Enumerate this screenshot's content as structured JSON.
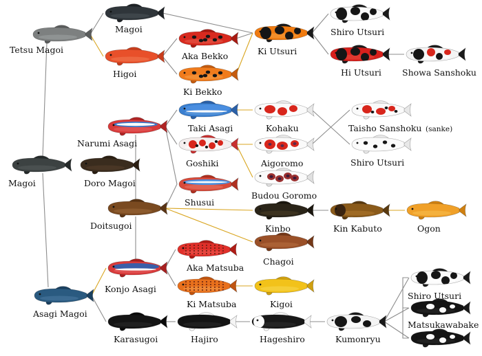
{
  "nodes": [
    {
      "id": "tetsu_magoi",
      "label": "Tetsu Magoi",
      "body": "#7d8080",
      "belly": "#9ea2a2",
      "fin": "#5a5c5c",
      "pattern": "plain"
    },
    {
      "id": "magoi_top",
      "label": "Magoi",
      "body": "#2f353a",
      "belly": "#4a5258",
      "fin": "#1e2226",
      "pattern": "plain"
    },
    {
      "id": "higoi",
      "label": "Higoi",
      "body": "#e8502a",
      "belly": "#f07a52",
      "fin": "#c93d1c",
      "pattern": "plain"
    },
    {
      "id": "aka_bekko",
      "label": "Aka Bekko",
      "body": "#d82a1f",
      "belly": "#e85d4d",
      "fin": "#a81a12",
      "pattern": "spots-black"
    },
    {
      "id": "ki_bekko",
      "label": "Ki Bekko",
      "body": "#f07b1c",
      "belly": "#f8a048",
      "fin": "#c55c10",
      "pattern": "spots-black"
    },
    {
      "id": "ki_utsuri",
      "label": "Ki Utsuri",
      "body": "#f07b10",
      "belly": "#f8a040",
      "fin": "#1a1a1a",
      "pattern": "utsuri-black"
    },
    {
      "id": "shiro_utsuri_top",
      "label": "Shiro Utsuri",
      "body": "#fafafa",
      "belly": "#ffffff",
      "fin": "#1a1a1a",
      "pattern": "utsuri-black"
    },
    {
      "id": "hi_utsuri",
      "label": "Hi Utsuri",
      "body": "#d8201c",
      "belly": "#e84c40",
      "fin": "#1a1a1a",
      "pattern": "utsuri-black"
    },
    {
      "id": "showa_sanshoku",
      "label": "Showa Sanshoku",
      "body": "#f4f4f4",
      "belly": "#ffffff",
      "fin": "#1a1a1a",
      "pattern": "showa"
    },
    {
      "id": "magoi_left",
      "label": "Magoi",
      "body": "#3c4242",
      "belly": "#555c5c",
      "fin": "#252a2a",
      "pattern": "plain"
    },
    {
      "id": "narumi_asagi",
      "label": "Narumi Asagi",
      "body": "#d83a3a",
      "belly": "#e86060",
      "fin": "#b02424",
      "pattern": "asagi-net"
    },
    {
      "id": "doro_magoi",
      "label": "Doro Magoi",
      "body": "#3a2c1e",
      "belly": "#55402c",
      "fin": "#2a1e12",
      "pattern": "plain"
    },
    {
      "id": "taki_asagi",
      "label": "Taki Asagi",
      "body": "#3a7fd0",
      "belly": "#6aa4e0",
      "fin": "#2a60a8",
      "pattern": "taki"
    },
    {
      "id": "goshiki",
      "label": "Goshiki",
      "body": "#f4eeee",
      "belly": "#ffffff",
      "fin": "#c83030",
      "pattern": "goshiki"
    },
    {
      "id": "shusui",
      "label": "Shusui",
      "body": "#d84a3a",
      "belly": "#e87868",
      "fin": "#b03020",
      "pattern": "shusui"
    },
    {
      "id": "kohaku",
      "label": "Kohaku",
      "body": "#fafafa",
      "belly": "#ffffff",
      "fin": "#e8e8e8",
      "pattern": "kohaku"
    },
    {
      "id": "aigoromo",
      "label": "Aigoromo",
      "body": "#fafafa",
      "belly": "#ffffff",
      "fin": "#e8e8e8",
      "pattern": "aigoromo"
    },
    {
      "id": "budou_goromo",
      "label": "Budou Goromo",
      "body": "#fafafa",
      "belly": "#ffffff",
      "fin": "#e0e0e0",
      "pattern": "budou"
    },
    {
      "id": "taisho_sanshoku",
      "label": "Taisho Sanshoku",
      "sublabel": "(sanke)",
      "body": "#fafafa",
      "belly": "#ffffff",
      "fin": "#e8e8e8",
      "pattern": "sanke"
    },
    {
      "id": "shiro_utsuri_mid",
      "label": "Shiro Utsuri",
      "body": "#fafafa",
      "belly": "#ffffff",
      "fin": "#e8e8e8",
      "pattern": "shiro-light"
    },
    {
      "id": "doitsugoi",
      "label": "Doitsugoi",
      "body": "#7a4a20",
      "belly": "#9a6838",
      "fin": "#5a3414",
      "pattern": "plain"
    },
    {
      "id": "kinbo",
      "label": "Kinbo",
      "body": "#2a2418",
      "belly": "#4a3e26",
      "fin": "#1a160e",
      "pattern": "plain"
    },
    {
      "id": "kin_kabuto",
      "label": "Kin Kabuto",
      "body": "#8a5a1a",
      "belly": "#b07a30",
      "fin": "#5a3a10",
      "pattern": "kabuto"
    },
    {
      "id": "ogon",
      "label": "Ogon",
      "body": "#f0a028",
      "belly": "#f8c050",
      "fin": "#d08010",
      "pattern": "plain"
    },
    {
      "id": "chagoi",
      "label": "Chagoi",
      "body": "#9a5028",
      "belly": "#b87040",
      "fin": "#743818",
      "pattern": "plain"
    },
    {
      "id": "aka_matsuba",
      "label": "Aka Matsuba",
      "body": "#e0302a",
      "belly": "#ec5a50",
      "fin": "#b01c16",
      "pattern": "matsuba"
    },
    {
      "id": "konjo_asagi",
      "label": "Konjo Asagi",
      "body": "#d83a3a",
      "belly": "#e86060",
      "fin": "#a82020",
      "pattern": "konjo"
    },
    {
      "id": "ki_matsuba",
      "label": "Ki Matsuba",
      "body": "#e8701c",
      "belly": "#f49a48",
      "fin": "#c05410",
      "pattern": "matsuba"
    },
    {
      "id": "kigoi",
      "label": "Kigoi",
      "body": "#f2c21a",
      "belly": "#f8d850",
      "fin": "#d0a010",
      "pattern": "plain"
    },
    {
      "id": "asagi_magoi",
      "label": "Asagi Magoi",
      "body": "#2a5a80",
      "belly": "#4a7aa0",
      "fin": "#1a4060",
      "pattern": "plain"
    },
    {
      "id": "karasugoi",
      "label": "Karasugoi",
      "body": "#141414",
      "belly": "#2a2a2a",
      "fin": "#0a0a0a",
      "pattern": "plain"
    },
    {
      "id": "hajiro",
      "label": "Hajiro",
      "body": "#141414",
      "belly": "#2a2a2a",
      "fin": "#f4f4f4",
      "pattern": "plain"
    },
    {
      "id": "hageshiro",
      "label": "Hageshiro",
      "body": "#181818",
      "belly": "#303030",
      "fin": "#f4f4f4",
      "pattern": "hageshiro"
    },
    {
      "id": "kumonryu",
      "label": "Kumonryu",
      "body": "#f4f4f4",
      "belly": "#ffffff",
      "fin": "#1a1a1a",
      "pattern": "kumonryu"
    },
    {
      "id": "shiro_utsuri_bot",
      "label": "Shiro Utsuri",
      "body": "#fafafa",
      "belly": "#ffffff",
      "fin": "#1a1a1a",
      "pattern": "utsuri-black"
    },
    {
      "id": "matsukawabake_a",
      "label": "Matsukawabake",
      "body": "#141414",
      "belly": "#2a2a2a",
      "fin": "#1a1a1a",
      "pattern": "matsukawa"
    },
    {
      "id": "matsukawabake_b",
      "label": "",
      "body": "#141414",
      "belly": "#2a2a2a",
      "fin": "#1a1a1a",
      "pattern": "matsukawa"
    }
  ],
  "edges": [
    {
      "from": "tetsu_magoi",
      "to": "magoi_top",
      "color": "gray"
    },
    {
      "from": "tetsu_magoi",
      "to": "higoi",
      "color": "gold"
    },
    {
      "from": "magoi_top",
      "to": "ki_utsuri",
      "color": "gray"
    },
    {
      "from": "higoi",
      "to": "aka_bekko",
      "color": "gray"
    },
    {
      "from": "higoi",
      "to": "ki_bekko",
      "color": "gray"
    },
    {
      "from": "aka_bekko",
      "to": "ki_utsuri",
      "color": "gray"
    },
    {
      "from": "ki_bekko",
      "to": "ki_utsuri",
      "color": "gold"
    },
    {
      "from": "ki_utsuri",
      "to": "shiro_utsuri_top",
      "color": "gray"
    },
    {
      "from": "ki_utsuri",
      "to": "hi_utsuri",
      "color": "gray"
    },
    {
      "from": "hi_utsuri",
      "to": "showa_sanshoku",
      "color": "gray"
    },
    {
      "from": "magoi_left",
      "to": "tetsu_magoi",
      "color": "gray"
    },
    {
      "from": "magoi_left",
      "to": "asagi_magoi",
      "color": "gray"
    },
    {
      "from": "narumi_asagi",
      "to": "taki_asagi",
      "color": "gray"
    },
    {
      "from": "narumi_asagi",
      "to": "goshiki",
      "color": "gray"
    },
    {
      "from": "narumi_asagi",
      "to": "shusui",
      "color": "gray"
    },
    {
      "from": "narumi_asagi",
      "to": "doitsugoi",
      "color": "gray"
    },
    {
      "from": "taki_asagi",
      "to": "kohaku",
      "color": "gold"
    },
    {
      "from": "goshiki",
      "to": "aigoromo",
      "color": "gold"
    },
    {
      "from": "goshiki",
      "to": "budou_goromo",
      "color": "gold"
    },
    {
      "from": "kohaku",
      "to": "shiro_utsuri_mid",
      "color": "gray"
    },
    {
      "from": "aigoromo",
      "to": "taisho_sanshoku",
      "color": "gray"
    },
    {
      "from": "doitsugoi",
      "to": "shusui",
      "color": "gray"
    },
    {
      "from": "doitsugoi",
      "to": "kinbo",
      "color": "gold"
    },
    {
      "from": "doitsugoi",
      "to": "chagoi",
      "color": "gold"
    },
    {
      "from": "doitsugoi",
      "to": "konjo_asagi",
      "color": "gray"
    },
    {
      "from": "kinbo",
      "to": "kin_kabuto",
      "color": "gray"
    },
    {
      "from": "kin_kabuto",
      "to": "ogon",
      "color": "gold"
    },
    {
      "from": "asagi_magoi",
      "to": "konjo_asagi",
      "color": "gold"
    },
    {
      "from": "asagi_magoi",
      "to": "karasugoi",
      "color": "gray"
    },
    {
      "from": "konjo_asagi",
      "to": "aka_matsuba",
      "color": "gray"
    },
    {
      "from": "konjo_asagi",
      "to": "ki_matsuba",
      "color": "gray"
    },
    {
      "from": "ki_matsuba",
      "to": "kigoi",
      "color": "gold"
    },
    {
      "from": "karasugoi",
      "to": "hajiro",
      "color": "gray"
    },
    {
      "from": "hajiro",
      "to": "hageshiro",
      "color": "gray"
    },
    {
      "from": "hageshiro",
      "to": "kumonryu",
      "color": "gray"
    },
    {
      "from": "kumonryu",
      "to": "shiro_utsuri_bot",
      "color": "gray"
    },
    {
      "from": "kumonryu",
      "to": "matsukawabake_a",
      "color": "gray"
    },
    {
      "from": "kumonryu",
      "to": "matsukawabake_b",
      "color": "gray"
    }
  ],
  "colors": {
    "edge_gray": "#8c8c8c",
    "edge_gold": "#d9a520"
  }
}
